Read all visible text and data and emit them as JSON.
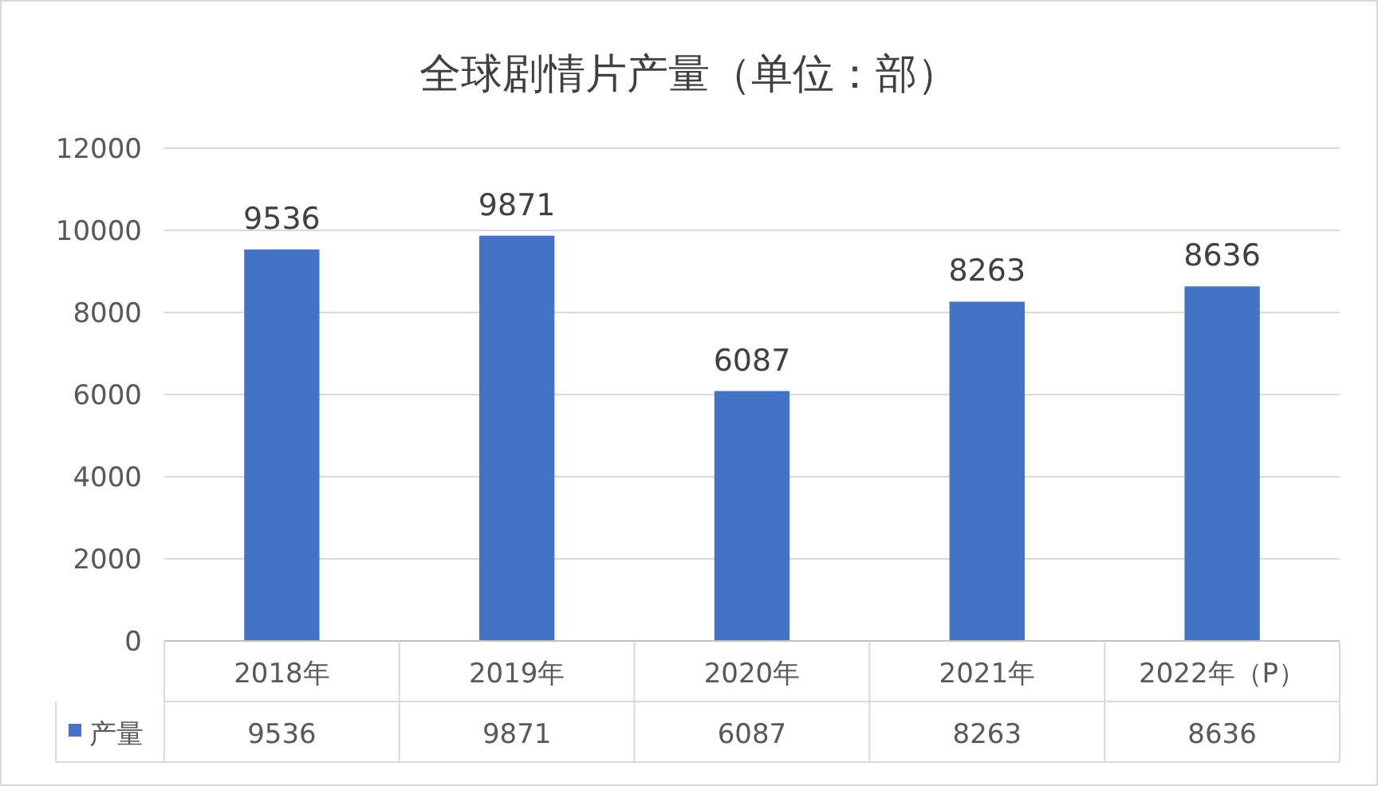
{
  "chart_data": {
    "type": "bar",
    "title": "全球剧情片产量（单位：部）",
    "categories": [
      "2018年",
      "2019年",
      "2020年",
      "2021年",
      "2022年（P）"
    ],
    "series": [
      {
        "name": "产量",
        "color": "#4472c4",
        "values": [
          9536,
          9871,
          6087,
          8263,
          8636
        ]
      }
    ],
    "ylim": [
      0,
      12000
    ],
    "yticks": [
      0,
      2000,
      4000,
      6000,
      8000,
      10000,
      12000
    ],
    "grid": "y",
    "data_labels": true,
    "legend": "bottom",
    "annotations": [
      "9536",
      "9871",
      "6087",
      "8263",
      "8636"
    ]
  }
}
